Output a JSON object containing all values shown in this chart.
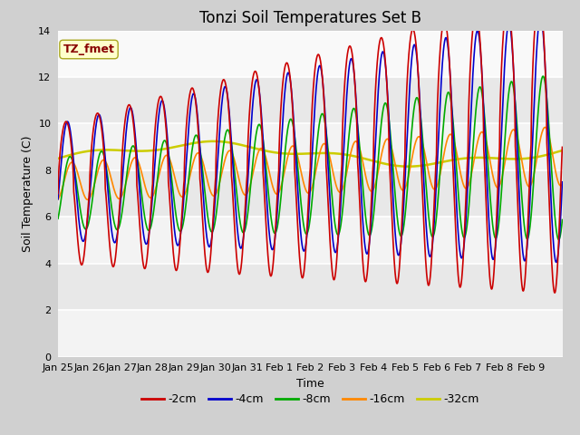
{
  "title": "Tonzi Soil Temperatures Set B",
  "xlabel": "Time",
  "ylabel": "Soil Temperature (C)",
  "ylim": [
    0,
    14
  ],
  "yticks": [
    0,
    2,
    4,
    6,
    8,
    10,
    12,
    14
  ],
  "xtick_labels": [
    "Jan 25",
    "Jan 26",
    "Jan 27",
    "Jan 28",
    "Jan 29",
    "Jan 30",
    "Jan 31",
    "Feb 1",
    "Feb 2",
    "Feb 3",
    "Feb 4",
    "Feb 5",
    "Feb 6",
    "Feb 7",
    "Feb 8",
    "Feb 9"
  ],
  "legend_label": "TZ_fmet",
  "series": {
    "-2cm": {
      "color": "#cc0000",
      "lw": 1.2
    },
    "-4cm": {
      "color": "#0000cc",
      "lw": 1.2
    },
    "-8cm": {
      "color": "#00aa00",
      "lw": 1.2
    },
    "-16cm": {
      "color": "#ff8800",
      "lw": 1.2
    },
    "-32cm": {
      "color": "#cccc00",
      "lw": 1.8
    }
  },
  "fig_bg": "#d0d0d0",
  "plot_bg": "#e8e8e8",
  "annotation_box_color": "#ffffcc",
  "annotation_text_color": "#880000",
  "title_fontsize": 12,
  "axis_label_fontsize": 9,
  "tick_fontsize": 8
}
